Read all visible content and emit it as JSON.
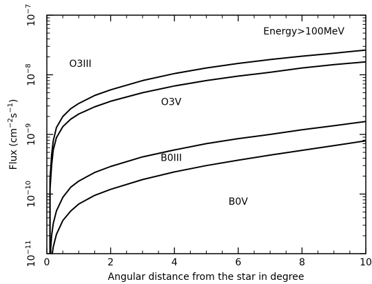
{
  "chart_data": {
    "type": "line",
    "title": "",
    "annotation": "Energy>100MeV",
    "xlabel": "Angular distance from the star in degree",
    "ylabel": {
      "base": "Flux (cm",
      "sup1": "−2",
      "mid": "s",
      "sup2": "−1",
      "end": ")"
    },
    "xlim": [
      0,
      10
    ],
    "ylim": [
      1e-11,
      1e-07
    ],
    "yscale": "log",
    "grid": false,
    "x_ticks": [
      {
        "value": 0,
        "label": "0"
      },
      {
        "value": 2,
        "label": "2"
      },
      {
        "value": 4,
        "label": "4"
      },
      {
        "value": 6,
        "label": "6"
      },
      {
        "value": 8,
        "label": "8"
      },
      {
        "value": 10,
        "label": "10"
      }
    ],
    "y_ticks": [
      {
        "value": 1e-11,
        "base": "10",
        "exp": "−11"
      },
      {
        "value": 1e-10,
        "base": "10",
        "exp": "−10"
      },
      {
        "value": 1e-09,
        "base": "10",
        "exp": "−9"
      },
      {
        "value": 1e-08,
        "base": "10",
        "exp": "−8"
      },
      {
        "value": 1e-07,
        "base": "10",
        "exp": "−7"
      }
    ],
    "series": [
      {
        "name": "O3III",
        "x": [
          0.1,
          0.15,
          0.2,
          0.3,
          0.5,
          0.75,
          1.0,
          1.5,
          2,
          3,
          4,
          5,
          6,
          7,
          8,
          9,
          10
        ],
        "y": [
          1.8e-10,
          4.5e-10,
          7.8e-10,
          1.3e-09,
          2e-09,
          2.7e-09,
          3.3e-09,
          4.5e-09,
          5.6e-09,
          8e-09,
          1.05e-08,
          1.3e-08,
          1.55e-08,
          1.8e-08,
          2.05e-08,
          2.3e-08,
          2.6e-08
        ]
      },
      {
        "name": "O3V",
        "x": [
          0.1,
          0.15,
          0.2,
          0.3,
          0.5,
          0.75,
          1.0,
          1.5,
          2,
          3,
          4,
          5,
          6,
          7,
          8,
          9,
          10
        ],
        "y": [
          1.2e-10,
          3e-10,
          5.5e-10,
          8.8e-10,
          1.35e-09,
          1.8e-09,
          2.2e-09,
          2.9e-09,
          3.6e-09,
          5e-09,
          6.5e-09,
          8e-09,
          9.5e-09,
          1.1e-08,
          1.3e-08,
          1.48e-08,
          1.65e-08
        ]
      },
      {
        "name": "B0III",
        "x": [
          0.12,
          0.15,
          0.2,
          0.3,
          0.5,
          0.75,
          1.0,
          1.5,
          2,
          3,
          4,
          5,
          6,
          7,
          8,
          9,
          10
        ],
        "y": [
          1.2e-11,
          2e-11,
          3.2e-11,
          5.2e-11,
          8.8e-11,
          1.3e-10,
          1.65e-10,
          2.3e-10,
          2.9e-10,
          4.2e-10,
          5.5e-10,
          7e-10,
          8.5e-10,
          1e-09,
          1.2e-09,
          1.4e-09,
          1.65e-09
        ]
      },
      {
        "name": "B0V",
        "x": [
          0.17,
          0.2,
          0.3,
          0.5,
          0.75,
          1.0,
          1.5,
          2,
          3,
          4,
          5,
          6,
          7,
          8,
          9,
          10
        ],
        "y": [
          1e-11,
          1.3e-11,
          2.1e-11,
          3.6e-11,
          5.2e-11,
          6.8e-11,
          9.5e-11,
          1.2e-10,
          1.75e-10,
          2.35e-10,
          3e-10,
          3.7e-10,
          4.5e-10,
          5.4e-10,
          6.5e-10,
          7.8e-10
        ]
      }
    ],
    "labels": [
      {
        "text": "O3III",
        "x": 1.05,
        "y": 1.35e-08
      },
      {
        "text": "O3V",
        "x": 3.9,
        "y": 3.1e-09
      },
      {
        "text": "B0III",
        "x": 3.9,
        "y": 3.6e-10
      },
      {
        "text": "B0V",
        "x": 6.0,
        "y": 6.6e-11
      }
    ]
  }
}
